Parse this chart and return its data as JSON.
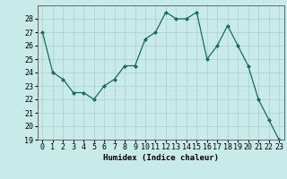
{
  "x": [
    0,
    1,
    2,
    3,
    4,
    5,
    6,
    7,
    8,
    9,
    10,
    11,
    12,
    13,
    14,
    15,
    16,
    17,
    18,
    19,
    20,
    21,
    22,
    23
  ],
  "y": [
    27,
    24,
    23.5,
    22.5,
    22.5,
    22,
    23,
    23.5,
    24.5,
    24.5,
    26.5,
    27,
    28.5,
    28,
    28,
    28.5,
    25,
    26,
    27.5,
    26,
    24.5,
    22,
    20.5,
    19
  ],
  "line_color": "#1a6b5a",
  "marker_color": "#1a6b5a",
  "bg_color": "#c8eae8",
  "grid_color": "#aacfcc",
  "xlabel": "Humidex (Indice chaleur)",
  "ylim": [
    19,
    29
  ],
  "xlim": [
    -0.5,
    23.5
  ],
  "yticks": [
    19,
    20,
    21,
    22,
    23,
    24,
    25,
    26,
    27,
    28
  ],
  "xticks": [
    0,
    1,
    2,
    3,
    4,
    5,
    6,
    7,
    8,
    9,
    10,
    11,
    12,
    13,
    14,
    15,
    16,
    17,
    18,
    19,
    20,
    21,
    22,
    23
  ],
  "label_fontsize": 6.5,
  "tick_fontsize": 6.0
}
